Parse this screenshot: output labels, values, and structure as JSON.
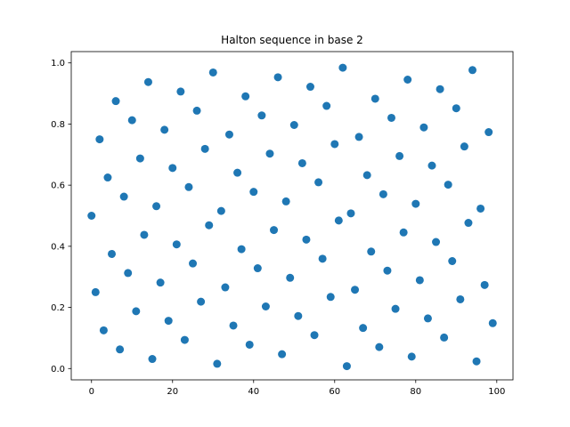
{
  "chart_data": {
    "type": "scatter",
    "title": "Halton sequence in base 2",
    "xlabel": "",
    "ylabel": "",
    "xlim": [
      -5,
      104
    ],
    "ylim": [
      -0.037,
      1.037
    ],
    "xticks": [
      0,
      20,
      40,
      60,
      80,
      100
    ],
    "yticks": [
      0.0,
      0.2,
      0.4,
      0.6,
      0.8,
      1.0
    ],
    "xtick_labels": [
      "0",
      "20",
      "40",
      "60",
      "80",
      "100"
    ],
    "ytick_labels": [
      "0.0",
      "0.2",
      "0.4",
      "0.6",
      "0.8",
      "1.0"
    ],
    "grid": false,
    "marker_color": "#1f77b4",
    "x": [
      0,
      1,
      2,
      3,
      4,
      5,
      6,
      7,
      8,
      9,
      10,
      11,
      12,
      13,
      14,
      15,
      16,
      17,
      18,
      19,
      20,
      21,
      22,
      23,
      24,
      25,
      26,
      27,
      28,
      29,
      30,
      31,
      32,
      33,
      34,
      35,
      36,
      37,
      38,
      39,
      40,
      41,
      42,
      43,
      44,
      45,
      46,
      47,
      48,
      49,
      50,
      51,
      52,
      53,
      54,
      55,
      56,
      57,
      58,
      59,
      60,
      61,
      62,
      63,
      64,
      65,
      66,
      67,
      68,
      69,
      70,
      71,
      72,
      73,
      74,
      75,
      76,
      77,
      78,
      79,
      80,
      81,
      82,
      83,
      84,
      85,
      86,
      87,
      88,
      89,
      90,
      91,
      92,
      93,
      94,
      95,
      96,
      97,
      98,
      99
    ],
    "y": [
      0.5,
      0.25,
      0.75,
      0.125,
      0.625,
      0.375,
      0.875,
      0.0625,
      0.5625,
      0.3125,
      0.8125,
      0.1875,
      0.6875,
      0.4375,
      0.9375,
      0.03125,
      0.53125,
      0.28125,
      0.78125,
      0.15625,
      0.65625,
      0.40625,
      0.90625,
      0.09375,
      0.59375,
      0.34375,
      0.84375,
      0.21875,
      0.71875,
      0.46875,
      0.96875,
      0.015625,
      0.515625,
      0.265625,
      0.765625,
      0.140625,
      0.640625,
      0.390625,
      0.890625,
      0.078125,
      0.578125,
      0.328125,
      0.828125,
      0.203125,
      0.703125,
      0.453125,
      0.953125,
      0.046875,
      0.546875,
      0.296875,
      0.796875,
      0.171875,
      0.671875,
      0.421875,
      0.921875,
      0.109375,
      0.609375,
      0.359375,
      0.859375,
      0.234375,
      0.734375,
      0.484375,
      0.984375,
      0.0078125,
      0.5078125,
      0.2578125,
      0.7578125,
      0.1328125,
      0.6328125,
      0.3828125,
      0.8828125,
      0.0703125,
      0.5703125,
      0.3203125,
      0.8203125,
      0.1953125,
      0.6953125,
      0.4453125,
      0.9453125,
      0.0390625,
      0.5390625,
      0.2890625,
      0.7890625,
      0.1640625,
      0.6640625,
      0.4140625,
      0.9140625,
      0.1015625,
      0.6015625,
      0.3515625,
      0.8515625,
      0.2265625,
      0.7265625,
      0.4765625,
      0.9765625,
      0.0234375,
      0.5234375,
      0.2734375,
      0.7734375,
      0.1484375
    ]
  }
}
